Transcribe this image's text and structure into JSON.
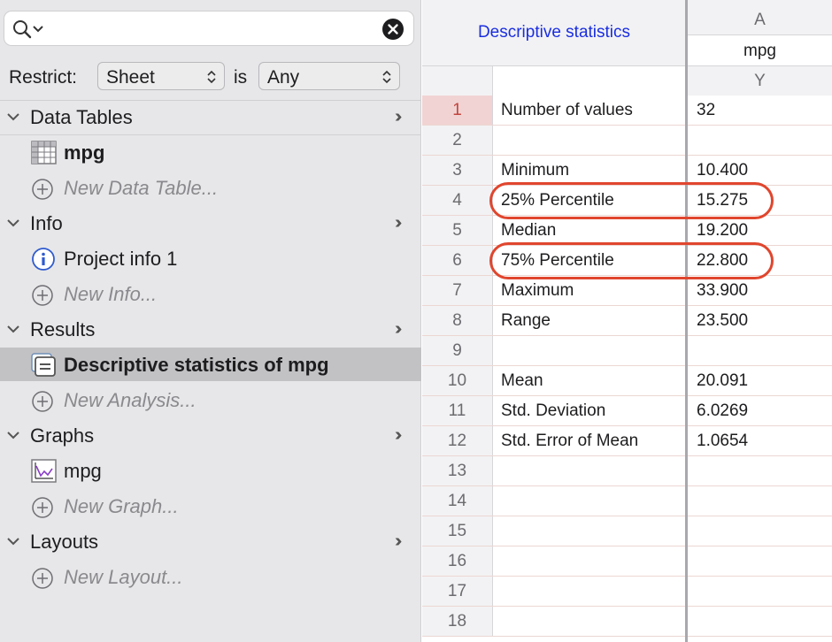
{
  "search": {
    "value": "",
    "placeholder": ""
  },
  "restrict": {
    "label": "Restrict:",
    "scope": "Sheet",
    "is_label": "is",
    "filter": "Any"
  },
  "navigator": {
    "data_tables": {
      "title": "Data Tables",
      "item": "mpg",
      "new_item": "New Data Table..."
    },
    "info": {
      "title": "Info",
      "item": "Project info 1",
      "new_item": "New Info..."
    },
    "results": {
      "title": "Results",
      "item": "Descriptive statistics of mpg",
      "new_item": "New Analysis..."
    },
    "graphs": {
      "title": "Graphs",
      "item": "mpg",
      "new_item": "New Graph..."
    },
    "layouts": {
      "title": "Layouts",
      "new_item": "New Layout..."
    }
  },
  "sheet": {
    "title": "Descriptive statistics",
    "column_letter": "A",
    "column_title": "mpg",
    "column_sub": "Y",
    "rows": [
      {
        "n": "1",
        "label": "Number of values",
        "value": "32"
      },
      {
        "n": "2",
        "label": "",
        "value": ""
      },
      {
        "n": "3",
        "label": "Minimum",
        "value": "10.400"
      },
      {
        "n": "4",
        "label": "25% Percentile",
        "value": "15.275"
      },
      {
        "n": "5",
        "label": "Median",
        "value": "19.200"
      },
      {
        "n": "6",
        "label": "75% Percentile",
        "value": "22.800"
      },
      {
        "n": "7",
        "label": "Maximum",
        "value": "33.900"
      },
      {
        "n": "8",
        "label": "Range",
        "value": "23.500"
      },
      {
        "n": "9",
        "label": "",
        "value": ""
      },
      {
        "n": "10",
        "label": "Mean",
        "value": "20.091"
      },
      {
        "n": "11",
        "label": "Std. Deviation",
        "value": "6.0269"
      },
      {
        "n": "12",
        "label": "Std. Error of Mean",
        "value": "1.0654"
      },
      {
        "n": "13",
        "label": "",
        "value": ""
      },
      {
        "n": "14",
        "label": "",
        "value": ""
      },
      {
        "n": "15",
        "label": "",
        "value": ""
      },
      {
        "n": "16",
        "label": "",
        "value": ""
      },
      {
        "n": "17",
        "label": "",
        "value": ""
      },
      {
        "n": "18",
        "label": "",
        "value": ""
      }
    ]
  },
  "colors": {
    "title_link": "#1a2ee0",
    "highlight": "#e0462e",
    "active_row": "#f1d3d3"
  },
  "icons": [
    "search-icon",
    "clear-icon",
    "chevron-down-icon",
    "more-icon",
    "data-table-icon",
    "add-icon",
    "info-icon",
    "results-sheet-icon",
    "graph-icon"
  ]
}
